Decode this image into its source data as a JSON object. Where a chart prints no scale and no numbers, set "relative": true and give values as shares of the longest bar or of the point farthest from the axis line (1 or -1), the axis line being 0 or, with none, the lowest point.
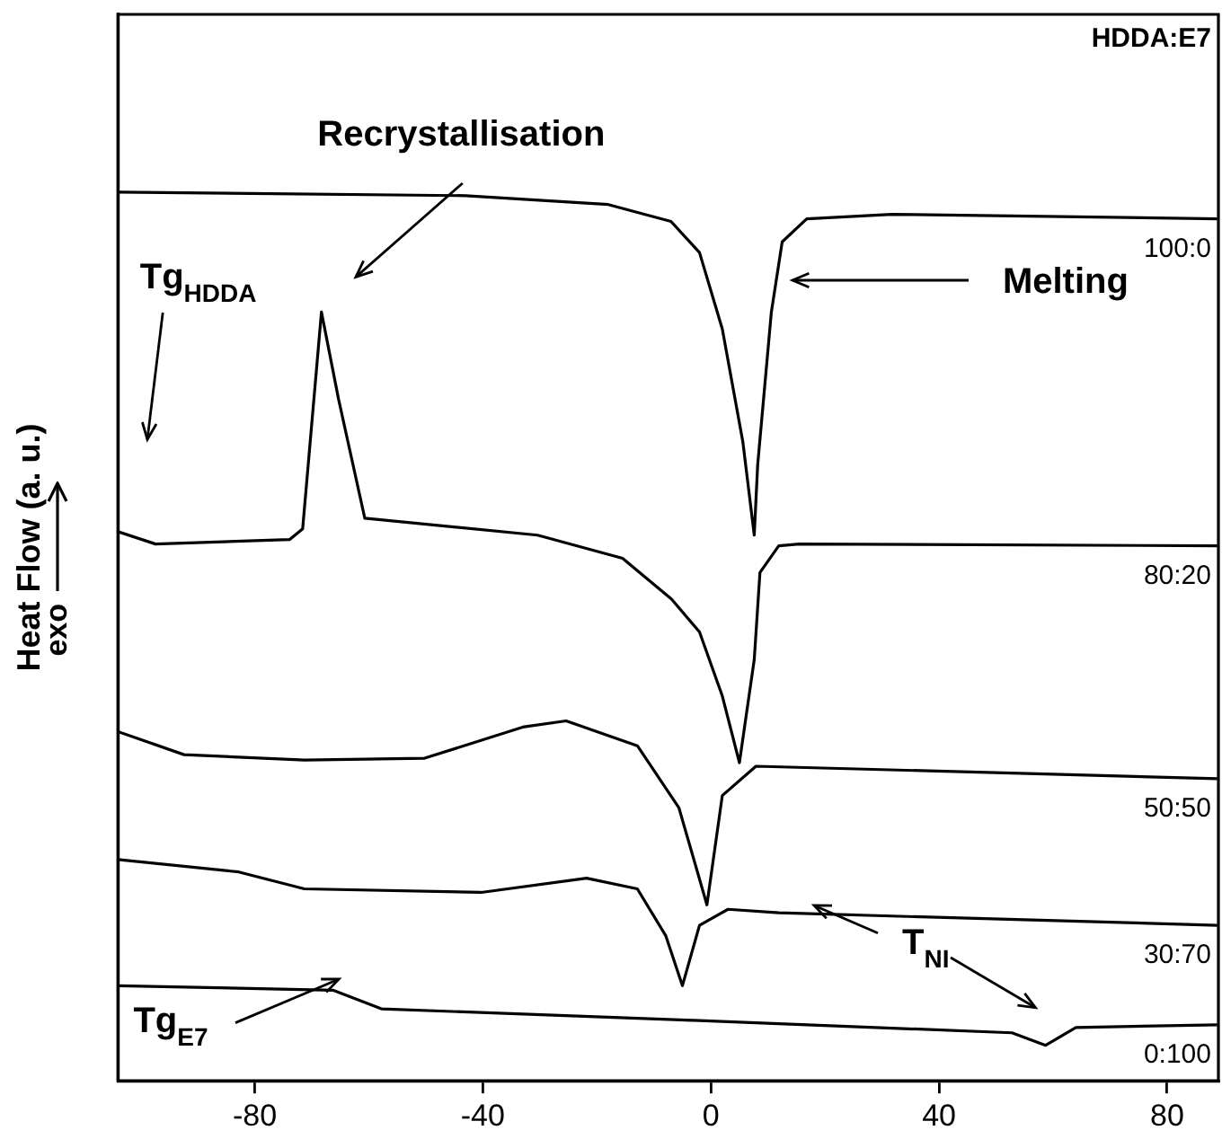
{
  "chart_data": {
    "type": "line",
    "title": "HDDA:E7",
    "ylabel": "Heat Flow (a. u.)",
    "relative": true,
    "grid": false,
    "legend": false,
    "marker": "none",
    "line_style": "solid",
    "xlim": [
      -104,
      89
    ],
    "xticks": [
      -80,
      -40,
      0,
      40,
      80
    ],
    "series": [
      {
        "name": "100:0",
        "color": "#000000",
        "x": [
          -104,
          -43,
          -18,
          -7,
          -2,
          2,
          5.6,
          7.6,
          8.2,
          10.6,
          12.5,
          16.8,
          31.7,
          88.8
        ],
        "values": [
          1.0,
          0.996,
          0.986,
          0.967,
          0.932,
          0.846,
          0.719,
          0.614,
          0.693,
          0.865,
          0.944,
          0.97,
          0.975,
          0.97
        ]
      },
      {
        "name": "80:20",
        "color": "#000000",
        "x": [
          -104,
          -97.4,
          -73.9,
          -71.6,
          -68.3,
          -65.3,
          -60.7,
          -30.4,
          -15.5,
          -6.9,
          -2,
          2,
          5,
          7.6,
          8.6,
          11.9,
          15.5,
          88.8
        ],
        "values": [
          0.618,
          0.604,
          0.609,
          0.621,
          0.865,
          0.767,
          0.633,
          0.614,
          0.588,
          0.542,
          0.505,
          0.433,
          0.358,
          0.474,
          0.572,
          0.602,
          0.604,
          0.602
        ]
      },
      {
        "name": "50:50",
        "color": "#000000",
        "x": [
          -104,
          -92.4,
          -71.3,
          -50.2,
          -33,
          -25.4,
          -12.9,
          -5.6,
          -0.7,
          2,
          7.9,
          88.8
        ],
        "values": [
          0.393,
          0.367,
          0.361,
          0.363,
          0.398,
          0.405,
          0.377,
          0.307,
          0.198,
          0.321,
          0.354,
          0.34
        ]
      },
      {
        "name": "30:70",
        "color": "#000000",
        "x": [
          -104,
          -82.8,
          -71.3,
          -40.3,
          -21.8,
          -12.9,
          -7.9,
          -5,
          -2,
          3,
          11.9,
          88.8
        ],
        "values": [
          0.249,
          0.235,
          0.216,
          0.212,
          0.228,
          0.216,
          0.163,
          0.107,
          0.175,
          0.193,
          0.189,
          0.175
        ]
      },
      {
        "name": "0:100",
        "color": "#000000",
        "x": [
          -104,
          -66.3,
          -57.8,
          -3,
          52.8,
          58.7,
          64,
          88.8
        ],
        "values": [
          0.107,
          0.102,
          0.081,
          0.068,
          0.054,
          0.04,
          0.06,
          0.063
        ]
      }
    ],
    "annotations": [
      "Recrystallisation",
      "Melting",
      "Tg$_{HDDA}$",
      "Tg$_{E7}$",
      "T$_{NI}$",
      "exo"
    ]
  }
}
